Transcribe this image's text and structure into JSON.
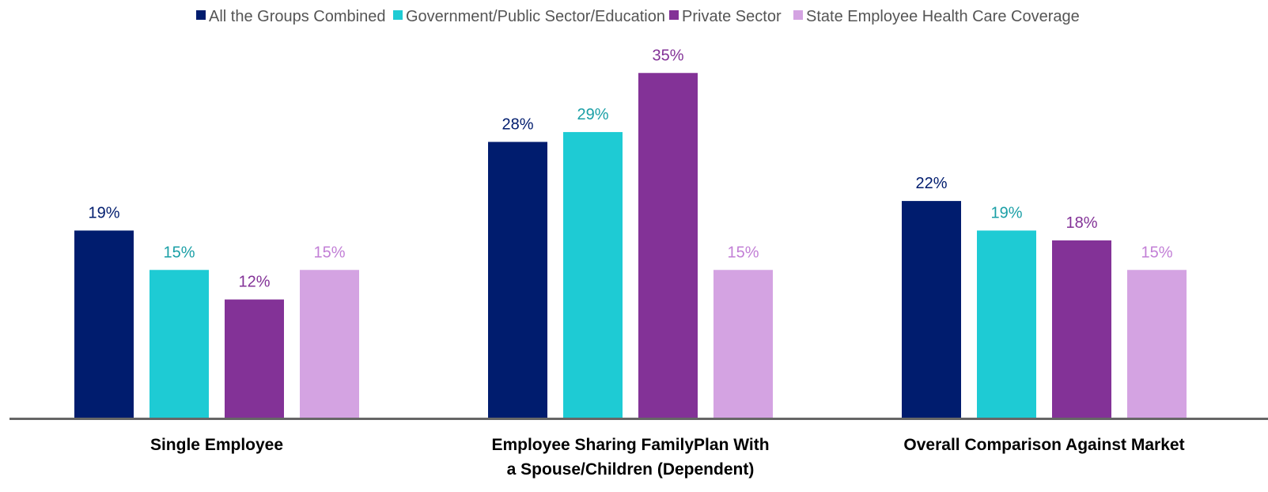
{
  "chart_data": {
    "type": "bar",
    "title": "",
    "xlabel": "",
    "ylabel": "",
    "ylim": [
      0,
      36
    ],
    "grid": false,
    "legend_position": "top",
    "value_suffix": "%",
    "categories": [
      [
        "Single Employee"
      ],
      [
        "Employee Sharing FamilyPlan With",
        "a Spouse/Children (Dependent)"
      ],
      [
        "Overall Comparison Against Market"
      ]
    ],
    "series": [
      {
        "name": "All the Groups Combined",
        "values": [
          19,
          28,
          22
        ],
        "color": "#001c6e",
        "label_color": "#001c6e"
      },
      {
        "name": "Government/Public Sector/Education",
        "values": [
          15,
          29,
          19
        ],
        "color": "#1ecbd4",
        "label_color": "#1a9fa6"
      },
      {
        "name": "Private Sector",
        "values": [
          12,
          35,
          18
        ],
        "color": "#833297",
        "label_color": "#833297"
      },
      {
        "name": "State Employee Health Care Coverage",
        "values": [
          15,
          15,
          15
        ],
        "color": "#d4a3e2",
        "label_color": "#c27fd6"
      }
    ],
    "axis_color": "#666666"
  }
}
